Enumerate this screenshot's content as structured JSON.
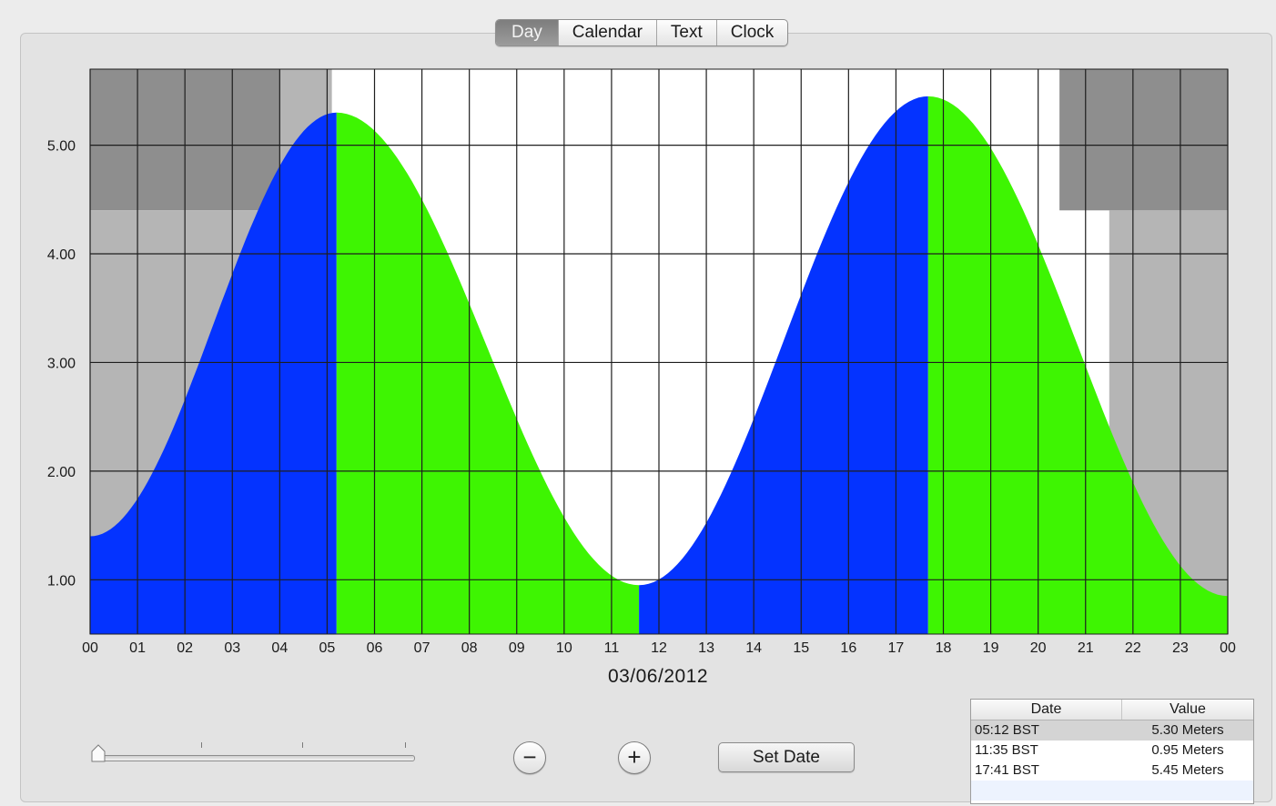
{
  "tabs": [
    {
      "label": "Day",
      "selected": true
    },
    {
      "label": "Calendar",
      "selected": false
    },
    {
      "label": "Text",
      "selected": false
    },
    {
      "label": "Clock",
      "selected": false
    }
  ],
  "date_label": "03/06/2012",
  "slider": {
    "value": 0,
    "tick_count": 4
  },
  "buttons": {
    "zoom_out": "−",
    "zoom_in": "+",
    "set_date": "Set Date"
  },
  "table": {
    "headers": {
      "date": "Date",
      "value": "Value"
    },
    "rows": [
      {
        "date": "05:12 BST",
        "value": "5.30 Meters",
        "selected": true
      },
      {
        "date": "11:35 BST",
        "value": "0.95 Meters",
        "selected": false
      },
      {
        "date": "17:41 BST",
        "value": "5.45 Meters",
        "selected": false
      }
    ]
  },
  "colors": {
    "rising": "#0433ff",
    "falling": "#3ef502",
    "night": "#8e8e8e",
    "twilight": "#b5b5b5",
    "day": "#ffffff",
    "grid": "#1e1e1e"
  },
  "chart_data": {
    "type": "area",
    "title": "",
    "xlabel": "",
    "ylabel": "",
    "x_ticks": [
      "00",
      "01",
      "02",
      "03",
      "04",
      "05",
      "06",
      "07",
      "08",
      "09",
      "10",
      "11",
      "12",
      "13",
      "14",
      "15",
      "16",
      "17",
      "18",
      "19",
      "20",
      "21",
      "22",
      "23",
      "00"
    ],
    "y_ticks": [
      "1.00",
      "2.00",
      "3.00",
      "4.00",
      "5.00"
    ],
    "xlim": [
      0,
      24
    ],
    "ylim": [
      0.5,
      5.7
    ],
    "grid": true,
    "series": [
      {
        "segment": "rising",
        "x": [
          0,
          5.2
        ],
        "y_start": 1.4,
        "y_end": 5.3
      },
      {
        "segment": "falling",
        "x": [
          5.2,
          11.58
        ],
        "y_start": 5.3,
        "y_end": 0.95
      },
      {
        "segment": "rising",
        "x": [
          11.58,
          17.68
        ],
        "y_start": 0.95,
        "y_end": 5.45
      },
      {
        "segment": "falling",
        "x": [
          17.68,
          24
        ],
        "y_start": 5.45,
        "y_end": 0.85
      }
    ],
    "extremes": [
      {
        "x": 5.2,
        "y": 5.3
      },
      {
        "x": 11.58,
        "y": 0.95
      },
      {
        "x": 17.68,
        "y": 5.45
      }
    ],
    "background_bands": [
      {
        "kind": "night",
        "x": [
          0,
          4
        ],
        "y": [
          4.4,
          5.7
        ]
      },
      {
        "kind": "twilight",
        "x": [
          0,
          4
        ],
        "y": [
          0.5,
          4.4
        ]
      },
      {
        "kind": "twilight",
        "x": [
          4,
          5.1
        ],
        "y": [
          0.5,
          5.7
        ]
      },
      {
        "kind": "twilight",
        "x": [
          21.5,
          24
        ],
        "y": [
          0.5,
          4.4
        ]
      },
      {
        "kind": "night",
        "x": [
          20.45,
          24
        ],
        "y": [
          4.4,
          5.7
        ]
      }
    ]
  }
}
